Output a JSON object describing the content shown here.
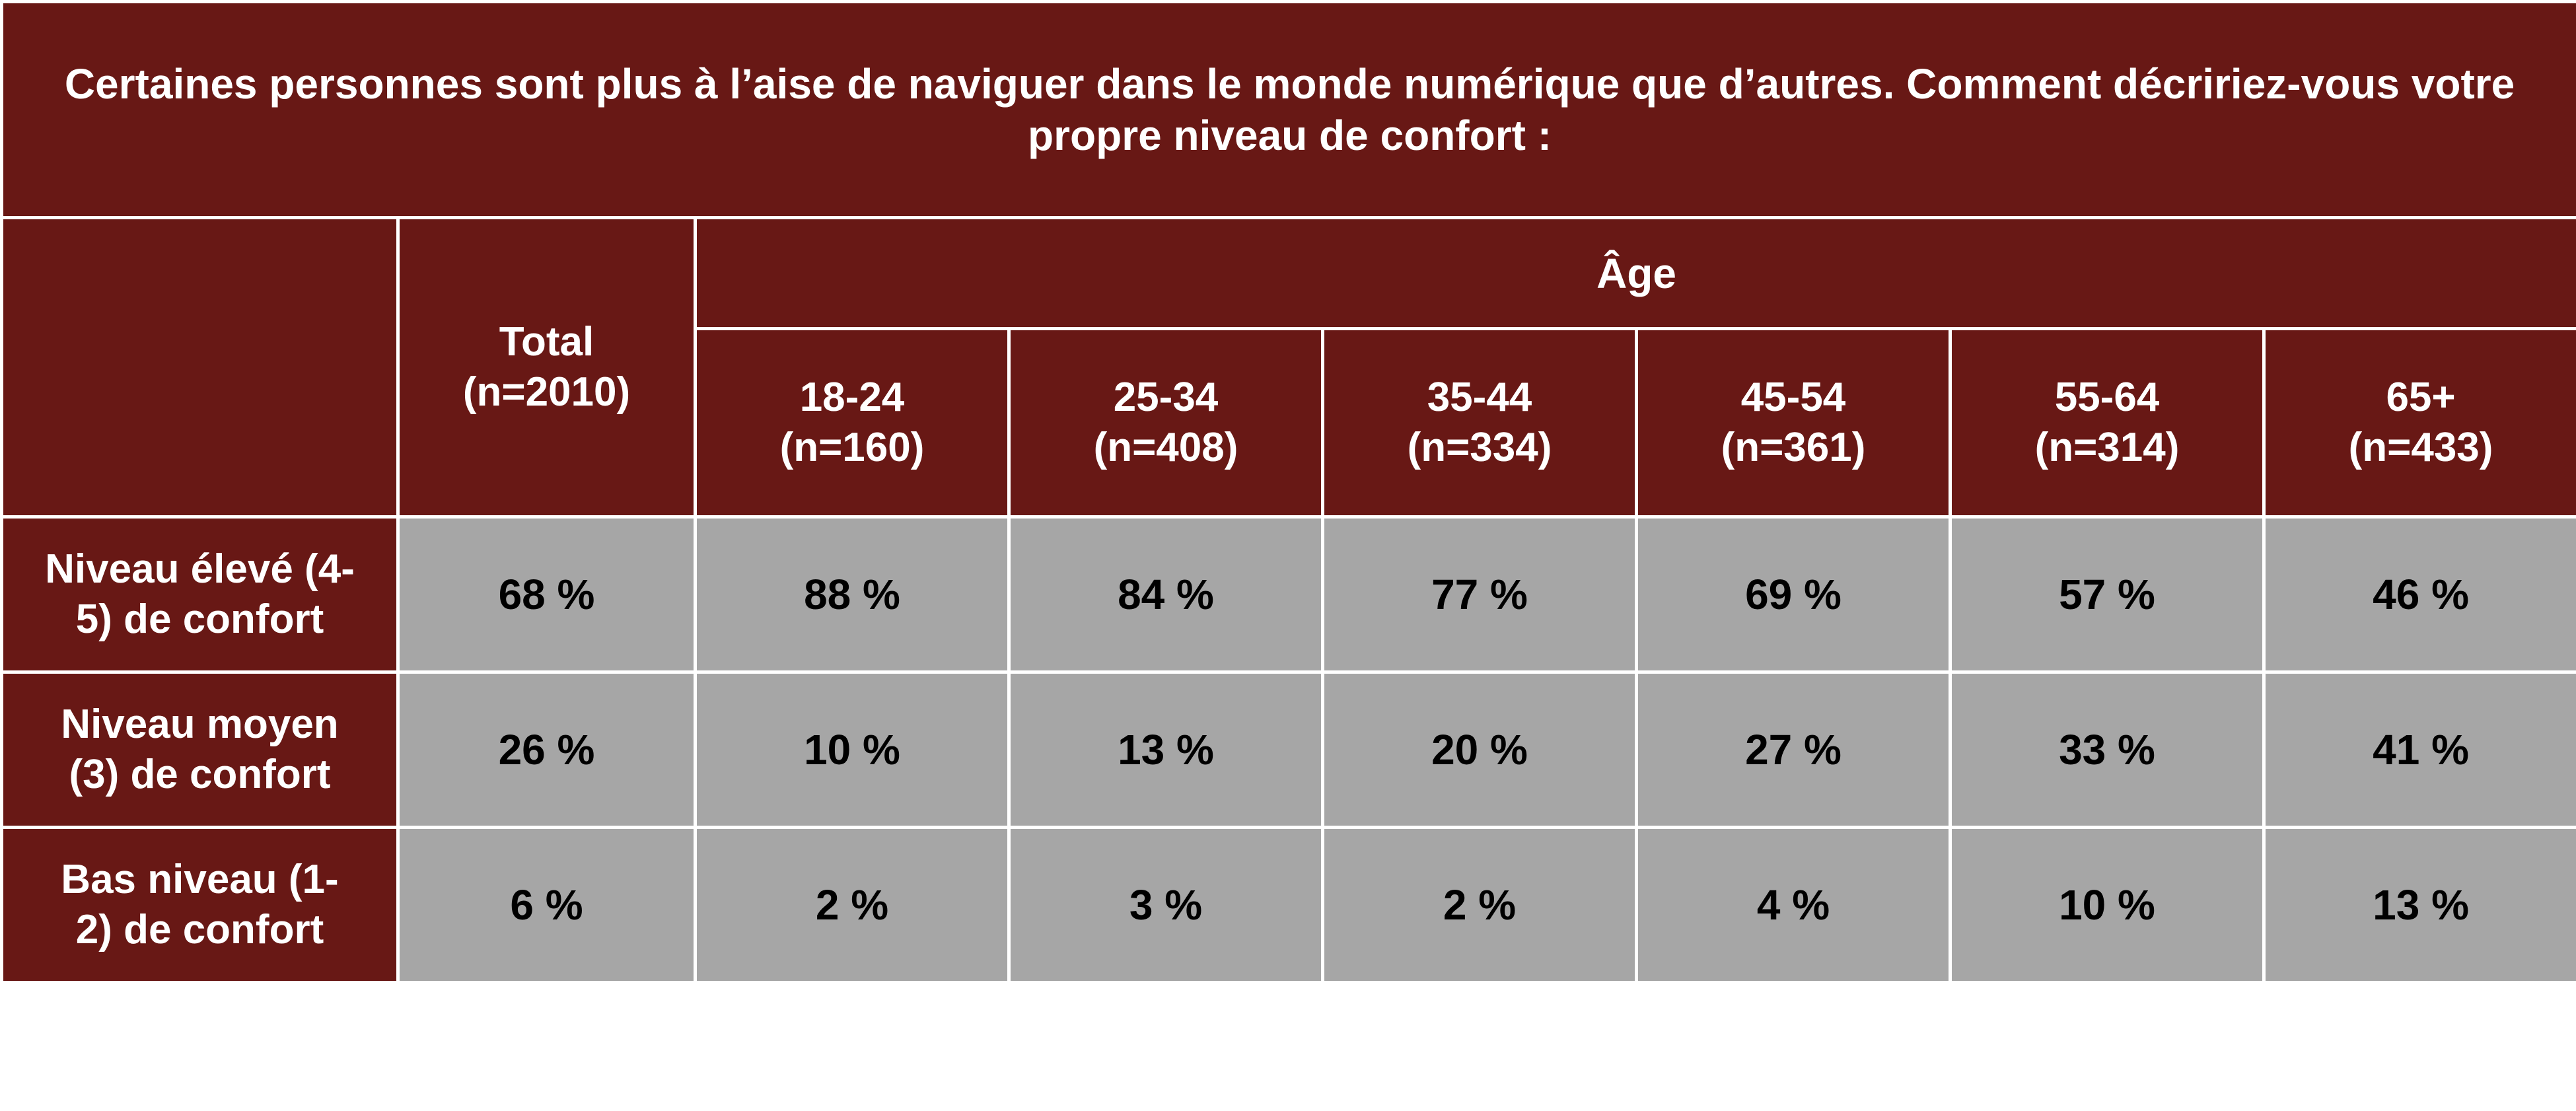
{
  "chart_data": {
    "type": "table",
    "title": "Certaines personnes sont plus à l’aise de naviguer dans le monde numérique que d’autres. Comment décririez-vous votre propre niveau de confort :",
    "group_label": "Âge",
    "columns": [
      {
        "label": "Total",
        "n": "(n=2010)"
      },
      {
        "label": "18-24",
        "n": "(n=160)"
      },
      {
        "label": "25-34",
        "n": "(n=408)"
      },
      {
        "label": "35-44",
        "n": "(n=334)"
      },
      {
        "label": "45-54",
        "n": "(n=361)"
      },
      {
        "label": "55-64",
        "n": "(n=314)"
      },
      {
        "label": "65+",
        "n": "(n=433)"
      }
    ],
    "rows": [
      {
        "label_lines": [
          "Niveau élevé (4-",
          "5) de confort"
        ],
        "values": [
          "68 %",
          "88 %",
          "84 %",
          "77 %",
          "69 %",
          "57 %",
          "46 %"
        ]
      },
      {
        "label_lines": [
          "Niveau moyen",
          "(3) de confort"
        ],
        "values": [
          "26 %",
          "10 %",
          "13 %",
          "20 %",
          "27 %",
          "33 %",
          "41 %"
        ]
      },
      {
        "label_lines": [
          "Bas niveau (1-",
          "2) de confort"
        ],
        "values": [
          "6 %",
          "2 %",
          "3 %",
          "2 %",
          "4 %",
          "10 %",
          "13 %"
        ]
      }
    ]
  }
}
